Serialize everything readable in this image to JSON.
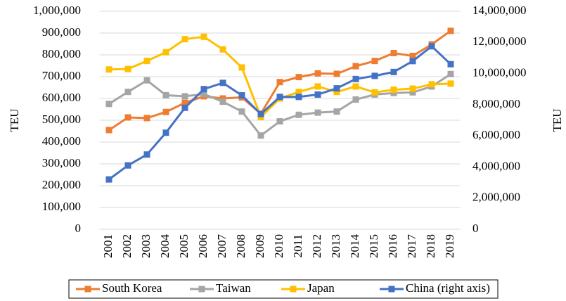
{
  "chart_data": {
    "type": "line",
    "y_label": "TEU",
    "y2_label": "TEU",
    "categories": [
      "2001",
      "2002",
      "2003",
      "2004",
      "2005",
      "2006",
      "2007",
      "2008",
      "2009",
      "2010",
      "2011",
      "2012",
      "2013",
      "2014",
      "2015",
      "2016",
      "2017",
      "2018",
      "2019"
    ],
    "series": [
      {
        "name": "South Korea",
        "color": "#ED7D31",
        "values": [
          455000,
          513000,
          510000,
          538000,
          580000,
          610000,
          600000,
          605000,
          530000,
          675000,
          698000,
          715000,
          713000,
          748000,
          772000,
          808000,
          795000,
          848000,
          910000
        ]
      },
      {
        "name": "Taiwan",
        "color": "#A5A5A5",
        "values": [
          575000,
          630000,
          683000,
          615000,
          610000,
          620000,
          585000,
          540000,
          430000,
          495000,
          525000,
          535000,
          540000,
          595000,
          618000,
          625000,
          628000,
          655000,
          712000
        ]
      },
      {
        "name": "Japan",
        "color": "#FFC000",
        "values": [
          733000,
          735000,
          772000,
          812000,
          872000,
          883000,
          825000,
          742000,
          515000,
          600000,
          630000,
          655000,
          630000,
          655000,
          628000,
          640000,
          645000,
          665000,
          668000
        ]
      },
      {
        "name": "China (right axis)",
        "color": "#4472C4",
        "axis": "y2",
        "values": [
          3200000,
          4100000,
          4800000,
          6200000,
          7800000,
          9000000,
          9400000,
          8600000,
          7400000,
          8500000,
          8500000,
          8650000,
          9050000,
          9650000,
          9850000,
          10100000,
          10800000,
          11750000,
          10600000
        ]
      }
    ],
    "ylim": [
      0,
      1000000
    ],
    "yticks": [
      0,
      {
        "value": 100000,
        "label": "100,000"
      },
      {
        "value": 200000,
        "label": "200,000"
      },
      {
        "value": 300000,
        "label": "300,000"
      },
      {
        "value": 400000,
        "label": "400,000"
      },
      {
        "value": 500000,
        "label": "500,000"
      },
      {
        "value": 600000,
        "label": "600,000"
      },
      {
        "value": 700000,
        "label": "700,000"
      },
      {
        "value": 800000,
        "label": "800,000"
      },
      {
        "value": 900000,
        "label": "900,000"
      },
      {
        "value": 1000000,
        "label": "1,000,000"
      }
    ],
    "y2lim": [
      0,
      14000000
    ],
    "y2ticks": [
      0,
      {
        "value": 2000000,
        "label": "2,000,000"
      },
      {
        "value": 4000000,
        "label": "4,000,000"
      },
      {
        "value": 6000000,
        "label": "6,000,000"
      },
      {
        "value": 8000000,
        "label": "8,000,000"
      },
      {
        "value": 10000000,
        "label": "10,000,000"
      },
      {
        "value": 12000000,
        "label": "12,000,000"
      },
      {
        "value": 14000000,
        "label": "14,000,000"
      }
    ],
    "grid": true,
    "legend": "bottom"
  }
}
